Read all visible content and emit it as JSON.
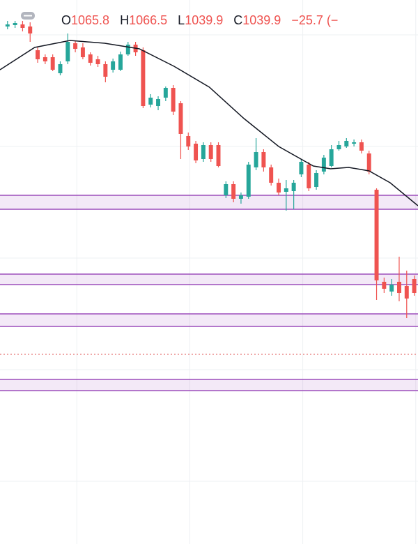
{
  "chart_data": {
    "type": "candlestick",
    "legend": {
      "open_label": "O",
      "open": "1065.8",
      "high_label": "H",
      "high": "1066.5",
      "low_label": "L",
      "low": "1039.9",
      "close_label": "C",
      "close": "1039.9",
      "change": "−25.7 (−"
    },
    "up_color": "#26a69a",
    "down_color": "#ef5350",
    "xlim": [
      -1,
      54.5
    ],
    "ylim": [
      944,
      1100
    ],
    "xgrid": [
      9.2,
      24.2,
      39.2,
      54.2
    ],
    "ygrid": [
      1090,
      1058,
      1026,
      994,
      962
    ],
    "open": [
      1092.4,
      1092.8,
      1093,
      1092.4,
      1085.6,
      1083.6,
      1083.6,
      1079,
      1082.4,
      1087.6,
      1086.4,
      1084.4,
      1083,
      1081.6,
      1080,
      1080,
      1084.4,
      1087.2,
      1085.6,
      1070,
      1069.6,
      1072,
      1074.8,
      1070.4,
      1061,
      1058.8,
      1054.4,
      1058.4,
      1058.4,
      1044,
      1047.2,
      1043,
      1043.6,
      1052,
      1056.4,
      1052,
      1047.6,
      1045,
      1045.2,
      1050,
      1052.8,
      1046.4,
      1050.8,
      1052.4,
      1057.2,
      1058,
      1058.8,
      1059.2,
      1056,
      1045.6,
      1019.2,
      1016.4,
      1019.2,
      1018,
      1020
    ],
    "high": [
      1094,
      1094,
      1094,
      1093.6,
      1086.4,
      1084.4,
      1084.4,
      1082.4,
      1090.4,
      1088.4,
      1087.6,
      1085,
      1084,
      1082.4,
      1083.2,
      1085.2,
      1088,
      1088,
      1086.4,
      1073,
      1072.4,
      1075.2,
      1075.6,
      1071,
      1062,
      1059.6,
      1059.2,
      1059.2,
      1059.2,
      1048,
      1048,
      1044.8,
      1053.6,
      1060.4,
      1057.2,
      1052.8,
      1048.8,
      1048.4,
      1048.4,
      1054.4,
      1053.6,
      1051.2,
      1055.6,
      1058.4,
      1059.6,
      1060.4,
      1060,
      1060,
      1056.8,
      1046,
      1020.4,
      1020,
      1026.4,
      1022.4,
      1021
    ],
    "low": [
      1091.6,
      1092,
      1091,
      1088,
      1082,
      1081.6,
      1079.6,
      1078.4,
      1081.6,
      1085,
      1083,
      1081.2,
      1080.8,
      1076.4,
      1079.2,
      1079.6,
      1084,
      1084,
      1069,
      1069.2,
      1068.4,
      1071,
      1067,
      1054.4,
      1057,
      1053.2,
      1053.6,
      1053.6,
      1052,
      1043.2,
      1042,
      1041.6,
      1043,
      1051.2,
      1050.8,
      1046.8,
      1044,
      1039.6,
      1040,
      1049.2,
      1045.2,
      1045.6,
      1050,
      1052,
      1056.8,
      1057.6,
      1058,
      1056,
      1050,
      1014,
      1016,
      1015.2,
      1013.6,
      1008.8,
      1015.2
    ],
    "close": [
      1093,
      1093.4,
      1092,
      1090.4,
      1083,
      1082.4,
      1080,
      1081.6,
      1088,
      1086,
      1083.6,
      1082,
      1081.6,
      1078,
      1082.4,
      1084.4,
      1087.2,
      1085,
      1069.6,
      1072,
      1071.6,
      1074.8,
      1068,
      1061.6,
      1058,
      1054,
      1058.4,
      1054.4,
      1052.4,
      1047.2,
      1043,
      1044,
      1052.8,
      1056.4,
      1052,
      1047.6,
      1044.8,
      1046,
      1047.6,
      1053.6,
      1046,
      1050.4,
      1054.8,
      1057.2,
      1058.4,
      1059.6,
      1059.2,
      1056.8,
      1050.8,
      1019.6,
      1017.2,
      1018.4,
      1016,
      1014.4,
      1016
    ],
    "moving_average": {
      "color": "#131722",
      "x": [
        -1,
        3.6,
        8.3,
        12.9,
        17.5,
        22.1,
        26.8,
        31.4,
        36,
        40.6,
        42.9,
        45.3,
        48,
        50.8,
        54.5
      ],
      "values": [
        1080,
        1086.4,
        1088.4,
        1087.6,
        1086,
        1081,
        1075,
        1066,
        1058,
        1052.4,
        1051.6,
        1052,
        1051,
        1047.6,
        1041
      ]
    },
    "zones": [
      [
        1044,
        1040
      ],
      [
        1021.4,
        1018.4
      ],
      [
        1010,
        1006.4
      ],
      [
        991.2,
        988
      ]
    ],
    "zone_color": "#9c4dbb",
    "dotted_line": 998.4,
    "dotted_color": "#e57373"
  }
}
